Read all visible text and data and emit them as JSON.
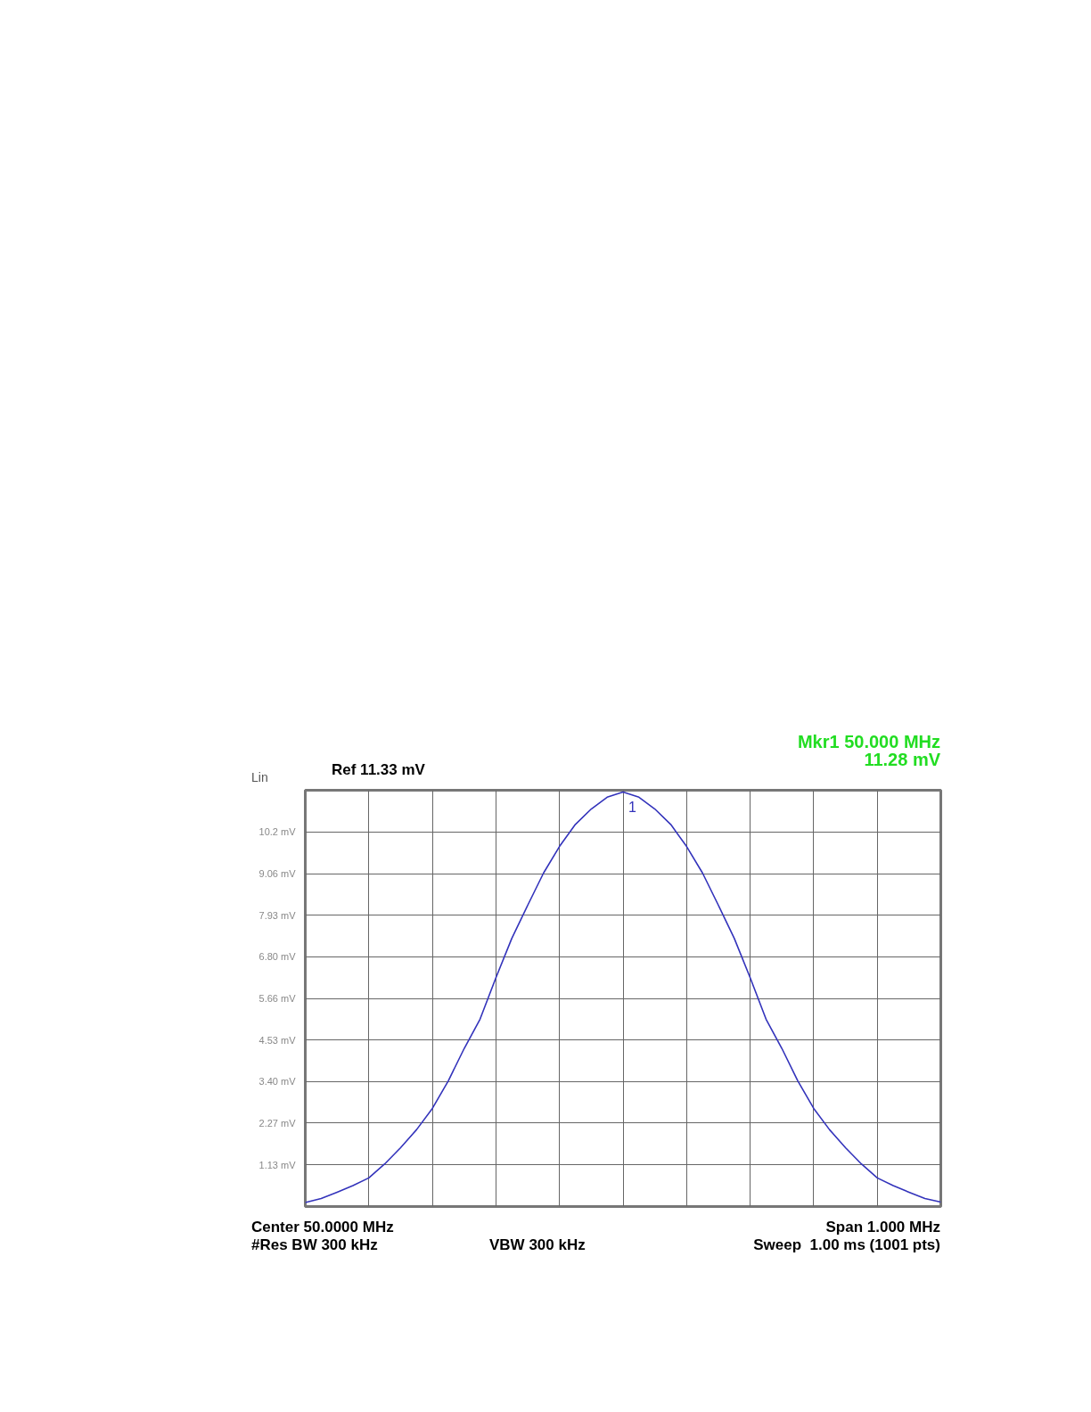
{
  "chart_data": {
    "type": "line",
    "categories": [
      null,
      null,
      null,
      null,
      null,
      null,
      null,
      null,
      null,
      null,
      null,
      null,
      null,
      null,
      null,
      null,
      null,
      null,
      null,
      null,
      null,
      null,
      null,
      null,
      null,
      null,
      null,
      null,
      null,
      null,
      null,
      null,
      null,
      null,
      null,
      null,
      null,
      null,
      null,
      null,
      null
    ],
    "series": [
      {
        "color": "#3333bb",
        "values": [
          0.11,
          0.22,
          0.39,
          0.57,
          0.78,
          1.16,
          1.6,
          2.09,
          2.67,
          3.42,
          4.3,
          5.1,
          6.23,
          7.3,
          8.2,
          9.08,
          9.8,
          10.4,
          10.82,
          11.14,
          11.28,
          11.14,
          10.82,
          10.4,
          9.8,
          9.08,
          8.2,
          7.3,
          6.23,
          5.1,
          4.3,
          3.42,
          2.67,
          2.09,
          1.6,
          1.16,
          0.78,
          0.57,
          0.39,
          0.22,
          0.12
        ]
      }
    ],
    "ylim": [
      0,
      11.33
    ],
    "yticks": [
      {
        "value": 1.13,
        "label": "1.13 mV"
      },
      {
        "value": 2.27,
        "label": "2.27 mV"
      },
      {
        "value": 3.4,
        "label": "3.40 mV"
      },
      {
        "value": 4.53,
        "label": "4.53 mV"
      },
      {
        "value": 5.66,
        "label": "5.66 mV"
      },
      {
        "value": 6.8,
        "label": "6.80 mV"
      },
      {
        "value": 7.93,
        "label": "7.93 mV"
      },
      {
        "value": 9.06,
        "label": "9.06 mV"
      },
      {
        "value": 10.2,
        "label": "10.2 mV"
      }
    ],
    "ylabel": "Lin",
    "grid": true,
    "line_style": "solid",
    "marker": "none",
    "annotations": [
      "Ref 11.33 mV",
      "Mkr1 50.000 MHz",
      "11.28 mV",
      "Center 50.0000 MHz",
      "Span 1.000 MHz",
      "#Res BW 300 kHz",
      "VBW 300 kHz",
      "Sweep  1.00 ms (1001 pts)",
      {
        "text": "1",
        "y": 11.28
      }
    ]
  }
}
